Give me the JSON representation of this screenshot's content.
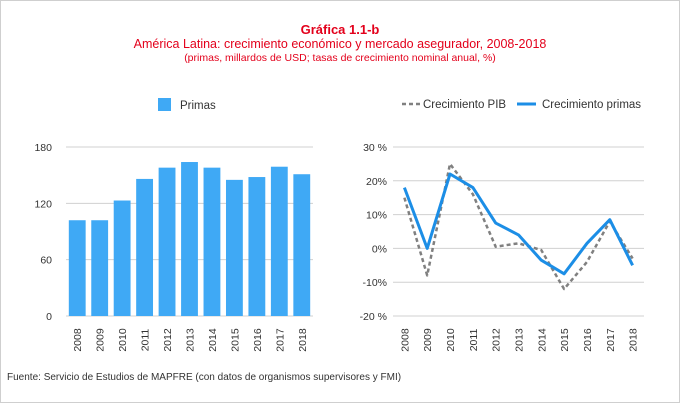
{
  "header": {
    "figure_label": "Gráfica 1.1-b",
    "title": "América Latina: crecimiento económico y mercado asegurador, 2008-2018",
    "subtitle": "(primas, millardos de USD; tasas de crecimiento nominal anual, %)"
  },
  "source": "Fuente: Servicio de Estudios de MAPFRE (con datos de organismos supervisores y FMI)",
  "colors": {
    "title": "#e3001b",
    "bar": "#3fa9f5",
    "line_primas": "#1c8ee6",
    "line_pib": "#808080"
  },
  "chart_data": [
    {
      "type": "bar",
      "categories": [
        "2008",
        "2009",
        "2010",
        "2011",
        "2012",
        "2013",
        "2014",
        "2015",
        "2016",
        "2017",
        "2018"
      ],
      "series": [
        {
          "name": "Primas",
          "values": [
            102,
            102,
            123,
            146,
            158,
            164,
            158,
            145,
            148,
            159,
            151
          ]
        }
      ],
      "ylim": [
        0,
        180
      ],
      "yticks": [
        0,
        60,
        120,
        180
      ],
      "grid": true,
      "legend": "top-left"
    },
    {
      "type": "line",
      "categories": [
        "2008",
        "2009",
        "2010",
        "2011",
        "2012",
        "2013",
        "2014",
        "2015",
        "2016",
        "2017",
        "2018"
      ],
      "series": [
        {
          "name": "Crecimiento PIB",
          "style": "dashed",
          "values": [
            15,
            -8,
            25,
            16,
            0.5,
            1.5,
            -0.5,
            -12,
            -4,
            8,
            -3
          ]
        },
        {
          "name": "Crecimiento primas",
          "style": "solid",
          "values": [
            18,
            0,
            22,
            18,
            7.5,
            4,
            -3.5,
            -7.5,
            1.5,
            8.5,
            -5
          ]
        }
      ],
      "ylim": [
        -20,
        30
      ],
      "yticks": [
        "-20 %",
        "-10%",
        "0%",
        "10%",
        "20%",
        "30 %"
      ],
      "ytick_values": [
        -20,
        -10,
        0,
        10,
        20,
        30
      ],
      "grid": true,
      "legend": "top"
    }
  ]
}
